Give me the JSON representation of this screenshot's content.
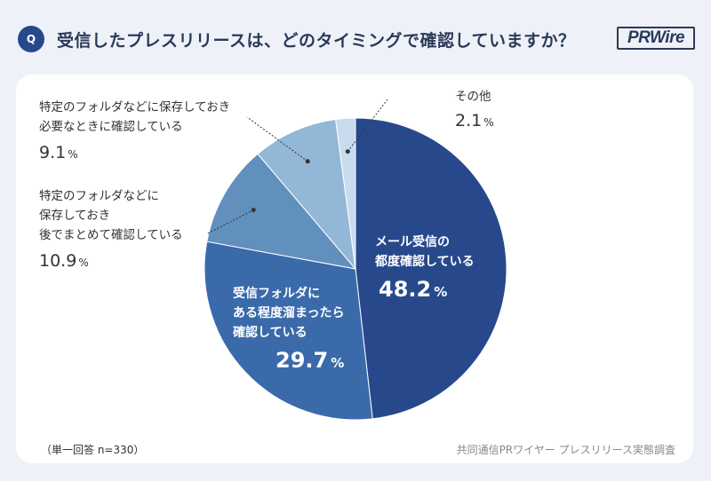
{
  "header": {
    "q_badge": "Q",
    "question": "受信したプレスリリースは、どのタイミングで確認していますか？",
    "logo": "PRWire"
  },
  "chart_data": {
    "type": "pie",
    "slices": [
      {
        "label": "メール受信の\n都度確認している",
        "value": 48.2,
        "color": "#27498c"
      },
      {
        "label": "受信フォルダに\nある程度溜まったら\n確認している",
        "value": 29.7,
        "color": "#3a6aaa"
      },
      {
        "label": "特定のフォルダなどに\n保存しておき\n後でまとめて確認している",
        "value": 10.9,
        "color": "#6290bd"
      },
      {
        "label": "特定のフォルダなどに保存しておき\n必要なときに確認している",
        "value": 9.1,
        "color": "#93b7d6"
      },
      {
        "label": "その他",
        "value": 2.1,
        "color": "#c8dcee"
      }
    ],
    "unit": "%"
  },
  "labels": {
    "s0_l1": "メール受信の",
    "s0_l2": "都度確認している",
    "s0_pct": "48.2",
    "s1_l1": "受信フォルダに",
    "s1_l2": "ある程度溜まったら",
    "s1_l3": "確認している",
    "s1_pct": "29.7",
    "s2_l1": "特定のフォルダなどに",
    "s2_l2": "保存しておき",
    "s2_l3": "後でまとめて確認している",
    "s2_pct": "10.9",
    "s3_l1": "特定のフォルダなどに保存しておき",
    "s3_l2": "必要なときに確認している",
    "s3_pct": "9.1",
    "s4_l1": "その他",
    "s4_pct": "2.1",
    "unit": "%"
  },
  "footer": {
    "note": "（単一回答 n=330）",
    "source": "共同通信PRワイヤー プレスリリース実態調査"
  }
}
